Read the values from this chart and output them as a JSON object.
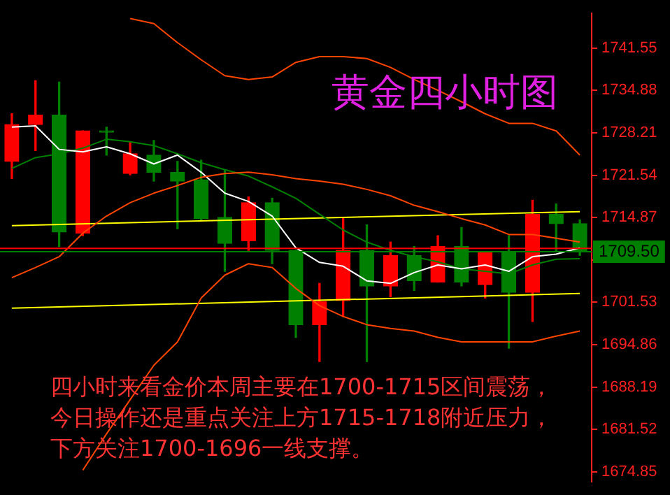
{
  "chart_data": {
    "type": "candlestick",
    "title": "黄金四小时图",
    "categories": [
      null,
      null,
      null,
      null,
      null,
      null,
      null,
      null,
      null,
      null,
      null,
      null,
      null,
      null,
      null,
      null,
      null,
      null,
      null,
      null,
      null,
      null,
      null,
      null,
      null
    ],
    "ohlc": [
      [
        1723.7,
        1731.2,
        1721.0,
        1729.5
      ],
      [
        1729.5,
        1736.4,
        1725.4,
        1731.0
      ],
      [
        1731.0,
        1736.2,
        1710.3,
        1712.6
      ],
      [
        1712.4,
        1728.5,
        1712.0,
        1728.5
      ],
      [
        1728.3,
        1729.1,
        1724.7,
        1728.3
      ],
      [
        1721.8,
        1726.8,
        1721.6,
        1724.9
      ],
      [
        1724.7,
        1727.0,
        1720.6,
        1722.0
      ],
      [
        1722.0,
        1723.7,
        1713.1,
        1720.6
      ],
      [
        1720.8,
        1723.9,
        1714.3,
        1714.7
      ],
      [
        1714.9,
        1722.4,
        1706.4,
        1710.8
      ],
      [
        1711.2,
        1718.1,
        1709.7,
        1717.2
      ],
      [
        1717.2,
        1717.9,
        1707.6,
        1709.7
      ],
      [
        1709.7,
        1709.7,
        1696.0,
        1698.0
      ],
      [
        1698.0,
        1704.5,
        1692.2,
        1701.6
      ],
      [
        1701.8,
        1714.7,
        1699.3,
        1709.7
      ],
      [
        1709.7,
        1713.7,
        1692.2,
        1704.1
      ],
      [
        1704.1,
        1711.0,
        1702.4,
        1708.9
      ],
      [
        1708.9,
        1710.3,
        1703.4,
        1704.9
      ],
      [
        1704.7,
        1712.0,
        1704.7,
        1710.3
      ],
      [
        1710.3,
        1713.3,
        1704.1,
        1704.7
      ],
      [
        1704.3,
        1709.5,
        1702.2,
        1709.3
      ],
      [
        1709.3,
        1712.0,
        1694.3,
        1703.1
      ],
      [
        1703.1,
        1717.6,
        1698.5,
        1715.4
      ],
      [
        1715.4,
        1717.0,
        1709.5,
        1713.9
      ],
      [
        1713.9,
        1714.5,
        1708.9,
        1709.5
      ]
    ],
    "colors": [
      "#ff0000",
      "#ff0000",
      "#008000",
      "#ff0000",
      "#008000",
      "#ff0000",
      "#008000",
      "#008000",
      "#008000",
      "#008000",
      "#ff0000",
      "#008000",
      "#008000",
      "#ff0000",
      "#ff0000",
      "#008000",
      "#ff0000",
      "#008000",
      "#ff0000",
      "#008000",
      "#ff0000",
      "#008000",
      "#ff0000",
      "#008000",
      "#008000"
    ],
    "series": [
      {
        "type": "line",
        "color": "#ff4500",
        "values": [
          null,
          null,
          null,
          null,
          null,
          1746.2,
          1745.4,
          1742.4,
          1739.7,
          1737.2,
          1736.6,
          1737.0,
          1739.3,
          1740.2,
          1740.2,
          1739.9,
          1738.5,
          1736.6,
          1734.9,
          1733.1,
          1731.2,
          1729.7,
          1729.7,
          1728.5,
          1724.7
        ]
      },
      {
        "type": "line",
        "color": "#ff4500",
        "values": [
          1705.4,
          1707.0,
          1708.7,
          1712.4,
          1715.1,
          1717.2,
          1718.7,
          1719.9,
          1721.2,
          1721.8,
          1722.0,
          1721.6,
          1721.0,
          1720.6,
          1720.1,
          1719.3,
          1718.3,
          1716.8,
          1715.8,
          1714.7,
          1713.7,
          1712.2,
          1712.2,
          1711.6,
          1711.0
        ]
      },
      {
        "type": "line",
        "color": "#ff4500",
        "values": [
          null,
          null,
          null,
          1675.1,
          1680.8,
          1686.2,
          1691.6,
          1695.3,
          1702.2,
          1705.8,
          1707.6,
          1707.0,
          1703.7,
          1701.0,
          1699.3,
          1698.0,
          1697.4,
          1697.0,
          1696.0,
          1695.3,
          1695.3,
          1695.3,
          1695.3,
          1696.2,
          1697.0
        ]
      },
      {
        "type": "line",
        "color": "#ffffff",
        "values": [
          1729.1,
          1729.3,
          1725.6,
          1725.2,
          1726.0,
          1724.9,
          1723.3,
          1724.7,
          1722.0,
          1718.7,
          1717.4,
          1715.1,
          1710.1,
          1707.8,
          1707.2,
          1704.9,
          1704.5,
          1706.2,
          1707.4,
          1706.8,
          1707.4,
          1706.4,
          1708.7,
          1709.1,
          1710.1
        ]
      },
      {
        "type": "line",
        "color": "#008000",
        "values": [
          1722.6,
          1724.3,
          1724.9,
          1725.8,
          1727.2,
          1726.8,
          1726.2,
          1724.9,
          1723.5,
          1722.4,
          1721.4,
          1719.7,
          1717.9,
          1715.4,
          1712.9,
          1711.0,
          1709.7,
          1708.7,
          1707.9,
          1706.8,
          1706.4,
          1706.0,
          1707.4,
          1708.3,
          1708.4
        ]
      },
      {
        "type": "line",
        "color": "#ffff00",
        "values": [
          1713.6,
          null,
          null,
          null,
          null,
          null,
          null,
          null,
          null,
          null,
          null,
          null,
          null,
          null,
          null,
          null,
          null,
          null,
          null,
          null,
          null,
          null,
          null,
          null,
          1715.8
        ]
      },
      {
        "type": "line",
        "color": "#ffff00",
        "values": [
          1700.6,
          null,
          null,
          null,
          null,
          null,
          null,
          null,
          null,
          null,
          null,
          null,
          null,
          null,
          null,
          null,
          null,
          null,
          null,
          null,
          null,
          null,
          null,
          null,
          1702.9
        ]
      }
    ],
    "ylim": [
      1673.3,
      1747.0
    ],
    "yticks": [
      1741.55,
      1734.88,
      1728.21,
      1721.54,
      1714.87,
      {
        "value": 1708.2,
        "label": null
      },
      1701.53,
      1694.86,
      1688.19,
      1681.52,
      1674.85
    ],
    "tick_labels": "y",
    "ref_lines": [
      {
        "axis": "y",
        "value": 1710.0,
        "color": "#ff0000"
      },
      {
        "axis": "y",
        "value": 1709.5,
        "label": "1709.50",
        "color": "#008000"
      }
    ],
    "annotations": [
      "四小时来看金价本周主要在1700-1715区间震荡，今日操作还是重点关注上方1715-1718附近压力，下方关注1700-1696一线支撑。"
    ]
  }
}
